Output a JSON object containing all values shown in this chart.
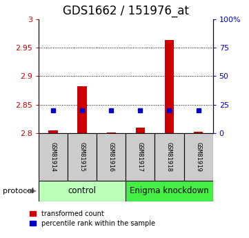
{
  "title": "GDS1662 / 151976_at",
  "samples": [
    "GSM81914",
    "GSM81915",
    "GSM81916",
    "GSM81917",
    "GSM81918",
    "GSM81919"
  ],
  "red_values": [
    2.805,
    2.882,
    2.802,
    2.81,
    2.963,
    2.803
  ],
  "blue_values": [
    2.84,
    2.84,
    2.84,
    2.84,
    2.84,
    2.84
  ],
  "ylim_left": [
    2.8,
    3.0
  ],
  "ylim_right": [
    0,
    100
  ],
  "yticks_left": [
    2.8,
    2.85,
    2.9,
    2.95,
    3.0
  ],
  "ytick_labels_left": [
    "2.8",
    "2.85",
    "2.9",
    "2.95",
    "3"
  ],
  "yticks_right": [
    0,
    25,
    50,
    75,
    100
  ],
  "ytick_labels_right": [
    "0",
    "25",
    "50",
    "75",
    "100%"
  ],
  "control_label": "control",
  "knockdown_label": "Enigma knockdown",
  "protocol_label": "protocol",
  "legend_red": "transformed count",
  "legend_blue": "percentile rank within the sample",
  "bar_bottom": 2.8,
  "red_color": "#cc0000",
  "blue_color": "#0000cc",
  "control_bg": "#bbffbb",
  "knockdown_bg": "#44ee44",
  "sample_bg": "#cccccc",
  "title_fontsize": 12,
  "tick_fontsize": 8,
  "label_fontsize": 8
}
